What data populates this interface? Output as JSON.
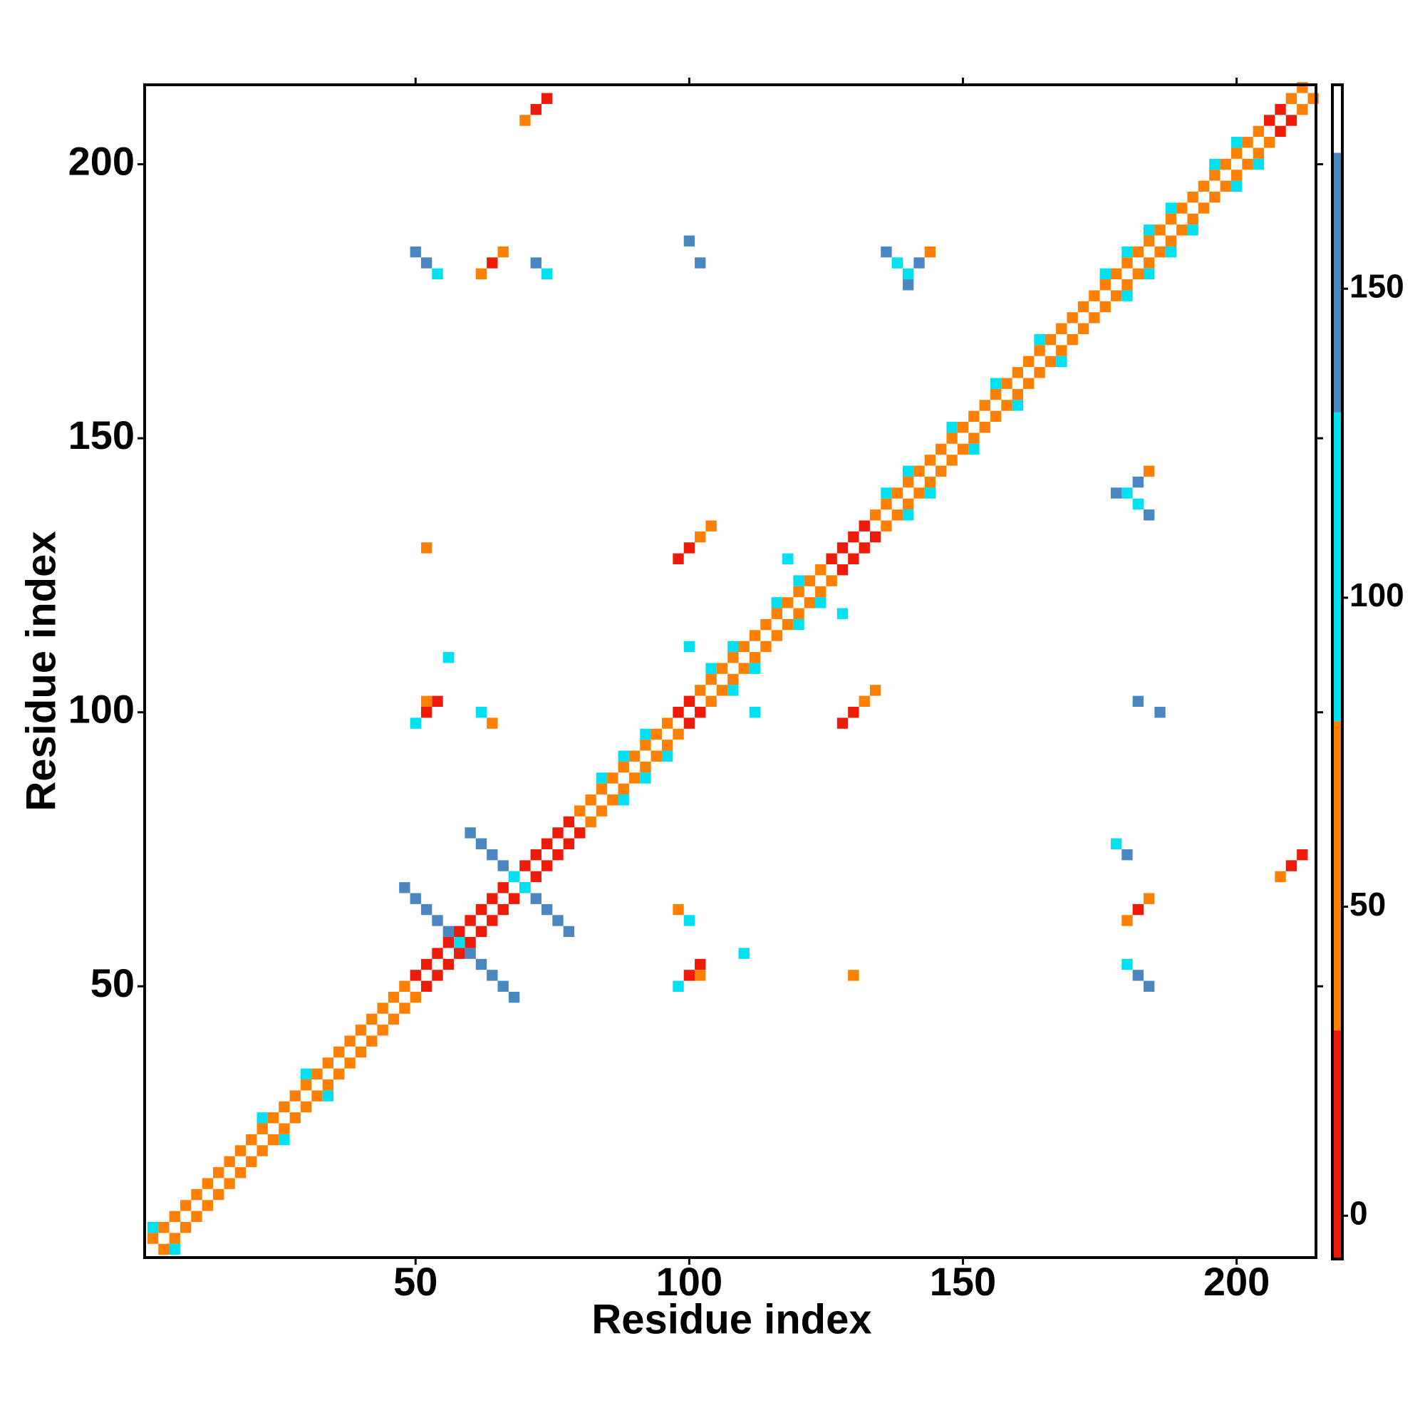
{
  "chart_data": {
    "type": "heatmap",
    "xlabel": "Residue index",
    "ylabel": "Residue index",
    "xlim": [
      0.5,
      214.5
    ],
    "ylim": [
      0.5,
      214.5
    ],
    "xticks": [
      50,
      100,
      150,
      200
    ],
    "yticks": [
      50,
      100,
      150,
      200
    ],
    "cell_size": 2,
    "colorbar": {
      "lim": [
        -7,
        183
      ],
      "ticks": [
        0,
        50,
        100,
        150
      ],
      "bins": [
        -7,
        30,
        80,
        130,
        172,
        183
      ],
      "colors": [
        "#ee1a0a",
        "#ff8000",
        "#00e0f0",
        "#4a86c0",
        "#ffffff"
      ]
    },
    "cells": [
      [
        2,
        4,
        55
      ],
      [
        4,
        2,
        55
      ],
      [
        4,
        6,
        55
      ],
      [
        6,
        4,
        55
      ],
      [
        6,
        8,
        55
      ],
      [
        8,
        6,
        55
      ],
      [
        8,
        10,
        55
      ],
      [
        10,
        8,
        55
      ],
      [
        10,
        12,
        55
      ],
      [
        12,
        10,
        55
      ],
      [
        12,
        14,
        55
      ],
      [
        14,
        12,
        55
      ],
      [
        14,
        16,
        55
      ],
      [
        16,
        14,
        55
      ],
      [
        16,
        18,
        55
      ],
      [
        18,
        16,
        55
      ],
      [
        18,
        20,
        55
      ],
      [
        20,
        18,
        55
      ],
      [
        20,
        22,
        55
      ],
      [
        22,
        20,
        55
      ],
      [
        22,
        24,
        55
      ],
      [
        24,
        22,
        55
      ],
      [
        24,
        26,
        55
      ],
      [
        26,
        24,
        55
      ],
      [
        26,
        28,
        55
      ],
      [
        28,
        26,
        55
      ],
      [
        28,
        30,
        55
      ],
      [
        30,
        28,
        55
      ],
      [
        30,
        32,
        55
      ],
      [
        32,
        30,
        55
      ],
      [
        32,
        34,
        55
      ],
      [
        34,
        32,
        55
      ],
      [
        34,
        36,
        55
      ],
      [
        36,
        34,
        55
      ],
      [
        36,
        38,
        55
      ],
      [
        38,
        36,
        55
      ],
      [
        38,
        40,
        55
      ],
      [
        40,
        38,
        55
      ],
      [
        40,
        42,
        55
      ],
      [
        42,
        40,
        55
      ],
      [
        42,
        44,
        55
      ],
      [
        44,
        42,
        55
      ],
      [
        44,
        46,
        55
      ],
      [
        46,
        44,
        55
      ],
      [
        46,
        48,
        55
      ],
      [
        48,
        46,
        55
      ],
      [
        48,
        50,
        55
      ],
      [
        50,
        48,
        55
      ],
      [
        50,
        52,
        10
      ],
      [
        52,
        50,
        10
      ],
      [
        52,
        54,
        10
      ],
      [
        54,
        52,
        10
      ],
      [
        54,
        56,
        10
      ],
      [
        56,
        54,
        10
      ],
      [
        56,
        58,
        10
      ],
      [
        58,
        56,
        10
      ],
      [
        58,
        60,
        10
      ],
      [
        60,
        58,
        10
      ],
      [
        60,
        62,
        10
      ],
      [
        62,
        60,
        10
      ],
      [
        62,
        64,
        10
      ],
      [
        64,
        62,
        10
      ],
      [
        64,
        66,
        10
      ],
      [
        66,
        64,
        10
      ],
      [
        66,
        68,
        10
      ],
      [
        68,
        66,
        10
      ],
      [
        68,
        70,
        10
      ],
      [
        70,
        68,
        10
      ],
      [
        70,
        72,
        10
      ],
      [
        72,
        70,
        10
      ],
      [
        72,
        74,
        10
      ],
      [
        74,
        72,
        10
      ],
      [
        74,
        76,
        10
      ],
      [
        76,
        74,
        10
      ],
      [
        76,
        78,
        10
      ],
      [
        78,
        76,
        10
      ],
      [
        78,
        80,
        10
      ],
      [
        80,
        78,
        10
      ],
      [
        80,
        82,
        55
      ],
      [
        82,
        80,
        55
      ],
      [
        82,
        84,
        55
      ],
      [
        84,
        82,
        55
      ],
      [
        84,
        86,
        55
      ],
      [
        86,
        84,
        55
      ],
      [
        86,
        88,
        55
      ],
      [
        88,
        86,
        55
      ],
      [
        88,
        90,
        55
      ],
      [
        90,
        88,
        55
      ],
      [
        90,
        92,
        55
      ],
      [
        92,
        90,
        55
      ],
      [
        92,
        94,
        55
      ],
      [
        94,
        92,
        55
      ],
      [
        94,
        96,
        55
      ],
      [
        96,
        94,
        55
      ],
      [
        96,
        98,
        55
      ],
      [
        98,
        96,
        55
      ],
      [
        98,
        100,
        10
      ],
      [
        100,
        98,
        10
      ],
      [
        100,
        102,
        10
      ],
      [
        102,
        100,
        10
      ],
      [
        102,
        104,
        55
      ],
      [
        104,
        102,
        55
      ],
      [
        104,
        106,
        55
      ],
      [
        106,
        104,
        55
      ],
      [
        106,
        108,
        55
      ],
      [
        108,
        106,
        55
      ],
      [
        108,
        110,
        55
      ],
      [
        110,
        108,
        55
      ],
      [
        110,
        112,
        55
      ],
      [
        112,
        110,
        55
      ],
      [
        112,
        114,
        55
      ],
      [
        114,
        112,
        55
      ],
      [
        114,
        116,
        55
      ],
      [
        116,
        114,
        55
      ],
      [
        116,
        118,
        55
      ],
      [
        118,
        116,
        55
      ],
      [
        118,
        120,
        55
      ],
      [
        120,
        118,
        55
      ],
      [
        120,
        122,
        55
      ],
      [
        122,
        120,
        55
      ],
      [
        122,
        124,
        55
      ],
      [
        124,
        122,
        55
      ],
      [
        124,
        126,
        55
      ],
      [
        126,
        124,
        55
      ],
      [
        126,
        128,
        10
      ],
      [
        128,
        126,
        10
      ],
      [
        128,
        130,
        10
      ],
      [
        130,
        128,
        10
      ],
      [
        130,
        132,
        10
      ],
      [
        132,
        130,
        10
      ],
      [
        132,
        134,
        10
      ],
      [
        134,
        132,
        10
      ],
      [
        134,
        136,
        55
      ],
      [
        136,
        134,
        55
      ],
      [
        136,
        138,
        55
      ],
      [
        138,
        136,
        55
      ],
      [
        138,
        140,
        55
      ],
      [
        140,
        138,
        55
      ],
      [
        140,
        142,
        55
      ],
      [
        142,
        140,
        55
      ],
      [
        142,
        144,
        55
      ],
      [
        144,
        142,
        55
      ],
      [
        144,
        146,
        55
      ],
      [
        146,
        144,
        55
      ],
      [
        146,
        148,
        55
      ],
      [
        148,
        146,
        55
      ],
      [
        148,
        150,
        55
      ],
      [
        150,
        148,
        55
      ],
      [
        150,
        152,
        55
      ],
      [
        152,
        150,
        55
      ],
      [
        152,
        154,
        55
      ],
      [
        154,
        152,
        55
      ],
      [
        154,
        156,
        55
      ],
      [
        156,
        154,
        55
      ],
      [
        156,
        158,
        55
      ],
      [
        158,
        156,
        55
      ],
      [
        158,
        160,
        55
      ],
      [
        160,
        158,
        55
      ],
      [
        160,
        162,
        55
      ],
      [
        162,
        160,
        55
      ],
      [
        162,
        164,
        55
      ],
      [
        164,
        162,
        55
      ],
      [
        164,
        166,
        55
      ],
      [
        166,
        164,
        55
      ],
      [
        166,
        168,
        55
      ],
      [
        168,
        166,
        55
      ],
      [
        168,
        170,
        55
      ],
      [
        170,
        168,
        55
      ],
      [
        170,
        172,
        55
      ],
      [
        172,
        170,
        55
      ],
      [
        172,
        174,
        55
      ],
      [
        174,
        172,
        55
      ],
      [
        174,
        176,
        55
      ],
      [
        176,
        174,
        55
      ],
      [
        176,
        178,
        55
      ],
      [
        178,
        176,
        55
      ],
      [
        178,
        180,
        55
      ],
      [
        180,
        178,
        55
      ],
      [
        180,
        182,
        55
      ],
      [
        182,
        180,
        55
      ],
      [
        182,
        184,
        55
      ],
      [
        184,
        182,
        55
      ],
      [
        184,
        186,
        55
      ],
      [
        186,
        184,
        55
      ],
      [
        186,
        188,
        55
      ],
      [
        188,
        186,
        55
      ],
      [
        188,
        190,
        55
      ],
      [
        190,
        188,
        55
      ],
      [
        190,
        192,
        55
      ],
      [
        192,
        190,
        55
      ],
      [
        192,
        194,
        55
      ],
      [
        194,
        192,
        55
      ],
      [
        194,
        196,
        55
      ],
      [
        196,
        194,
        55
      ],
      [
        196,
        198,
        55
      ],
      [
        198,
        196,
        55
      ],
      [
        198,
        200,
        55
      ],
      [
        200,
        198,
        55
      ],
      [
        200,
        202,
        55
      ],
      [
        202,
        200,
        55
      ],
      [
        202,
        204,
        55
      ],
      [
        204,
        202,
        55
      ],
      [
        204,
        206,
        55
      ],
      [
        206,
        204,
        55
      ],
      [
        206,
        208,
        10
      ],
      [
        208,
        206,
        10
      ],
      [
        208,
        210,
        10
      ],
      [
        210,
        208,
        10
      ],
      [
        210,
        212,
        55
      ],
      [
        212,
        210,
        55
      ],
      [
        212,
        214,
        55
      ],
      [
        214,
        212,
        55
      ],
      [
        2,
        6,
        100
      ],
      [
        6,
        2,
        100
      ],
      [
        22,
        26,
        100
      ],
      [
        26,
        22,
        100
      ],
      [
        30,
        34,
        100
      ],
      [
        34,
        30,
        100
      ],
      [
        84,
        88,
        100
      ],
      [
        88,
        84,
        100
      ],
      [
        88,
        92,
        100
      ],
      [
        92,
        88,
        100
      ],
      [
        92,
        96,
        100
      ],
      [
        96,
        92,
        100
      ],
      [
        104,
        108,
        100
      ],
      [
        108,
        104,
        100
      ],
      [
        108,
        112,
        100
      ],
      [
        112,
        108,
        100
      ],
      [
        116,
        120,
        100
      ],
      [
        120,
        116,
        100
      ],
      [
        120,
        124,
        100
      ],
      [
        124,
        120,
        100
      ],
      [
        136,
        140,
        100
      ],
      [
        140,
        136,
        100
      ],
      [
        140,
        144,
        100
      ],
      [
        144,
        140,
        100
      ],
      [
        148,
        152,
        100
      ],
      [
        152,
        148,
        100
      ],
      [
        156,
        160,
        100
      ],
      [
        160,
        156,
        100
      ],
      [
        164,
        168,
        100
      ],
      [
        168,
        164,
        100
      ],
      [
        176,
        180,
        100
      ],
      [
        180,
        176,
        100
      ],
      [
        180,
        184,
        100
      ],
      [
        184,
        180,
        100
      ],
      [
        184,
        188,
        100
      ],
      [
        188,
        184,
        100
      ],
      [
        188,
        192,
        100
      ],
      [
        192,
        188,
        100
      ],
      [
        196,
        200,
        100
      ],
      [
        200,
        196,
        100
      ],
      [
        200,
        204,
        100
      ],
      [
        204,
        200,
        100
      ],
      [
        48,
        68,
        150
      ],
      [
        50,
        66,
        150
      ],
      [
        52,
        64,
        150
      ],
      [
        54,
        62,
        150
      ],
      [
        56,
        60,
        150
      ],
      [
        58,
        58,
        100
      ],
      [
        60,
        56,
        150
      ],
      [
        62,
        54,
        150
      ],
      [
        64,
        52,
        150
      ],
      [
        66,
        50,
        150
      ],
      [
        68,
        48,
        150
      ],
      [
        60,
        78,
        150
      ],
      [
        62,
        76,
        150
      ],
      [
        64,
        74,
        150
      ],
      [
        66,
        72,
        150
      ],
      [
        68,
        70,
        100
      ],
      [
        70,
        68,
        100
      ],
      [
        72,
        66,
        150
      ],
      [
        74,
        64,
        150
      ],
      [
        76,
        62,
        150
      ],
      [
        78,
        60,
        150
      ],
      [
        98,
        50,
        100
      ],
      [
        100,
        52,
        10
      ],
      [
        102,
        54,
        10
      ],
      [
        102,
        52,
        55
      ],
      [
        50,
        98,
        100
      ],
      [
        52,
        100,
        10
      ],
      [
        54,
        102,
        10
      ],
      [
        52,
        102,
        55
      ],
      [
        128,
        98,
        10
      ],
      [
        130,
        100,
        10
      ],
      [
        132,
        102,
        55
      ],
      [
        134,
        104,
        55
      ],
      [
        98,
        128,
        10
      ],
      [
        100,
        130,
        10
      ],
      [
        102,
        132,
        55
      ],
      [
        104,
        134,
        55
      ],
      [
        208,
        70,
        55
      ],
      [
        210,
        72,
        10
      ],
      [
        212,
        74,
        10
      ],
      [
        70,
        208,
        55
      ],
      [
        72,
        210,
        10
      ],
      [
        74,
        212,
        10
      ],
      [
        130,
        52,
        55
      ],
      [
        52,
        130,
        55
      ],
      [
        136,
        184,
        150
      ],
      [
        138,
        182,
        100
      ],
      [
        140,
        180,
        100
      ],
      [
        142,
        182,
        150
      ],
      [
        144,
        184,
        55
      ],
      [
        140,
        178,
        150
      ],
      [
        184,
        136,
        150
      ],
      [
        182,
        138,
        100
      ],
      [
        180,
        140,
        100
      ],
      [
        182,
        142,
        150
      ],
      [
        184,
        144,
        55
      ],
      [
        178,
        140,
        150
      ],
      [
        50,
        184,
        150
      ],
      [
        52,
        182,
        150
      ],
      [
        54,
        180,
        100
      ],
      [
        184,
        50,
        150
      ],
      [
        182,
        52,
        150
      ],
      [
        180,
        54,
        100
      ],
      [
        62,
        180,
        55
      ],
      [
        64,
        182,
        10
      ],
      [
        66,
        184,
        55
      ],
      [
        180,
        62,
        55
      ],
      [
        182,
        64,
        10
      ],
      [
        184,
        66,
        55
      ],
      [
        100,
        186,
        150
      ],
      [
        102,
        182,
        150
      ],
      [
        186,
        100,
        150
      ],
      [
        182,
        102,
        150
      ],
      [
        72,
        182,
        150
      ],
      [
        74,
        180,
        100
      ],
      [
        178,
        76,
        100
      ],
      [
        180,
        74,
        150
      ],
      [
        112,
        100,
        100
      ],
      [
        100,
        112,
        100
      ],
      [
        128,
        118,
        100
      ],
      [
        118,
        128,
        100
      ],
      [
        98,
        64,
        55
      ],
      [
        100,
        62,
        100
      ],
      [
        64,
        98,
        55
      ],
      [
        62,
        100,
        100
      ],
      [
        110,
        56,
        100
      ],
      [
        56,
        110,
        100
      ]
    ]
  }
}
